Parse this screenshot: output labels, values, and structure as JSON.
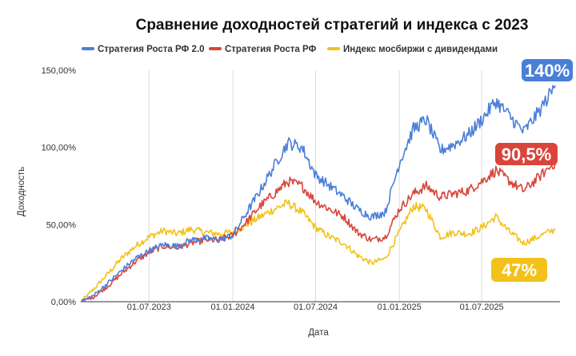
{
  "chart_data": {
    "type": "line",
    "title": "Сравнение доходностей стратегий и индекса с 2023",
    "xlabel": "Дата",
    "ylabel": "Доходность",
    "ylim": [
      0,
      150
    ],
    "xlim": [
      "2023-02-01",
      "2025-12-20"
    ],
    "x_ticks": [
      {
        "date": "2023-07-01",
        "label": "01.07.2023"
      },
      {
        "date": "2024-01-01",
        "label": "01.01.2024"
      },
      {
        "date": "2024-07-01",
        "label": "01.07.2024"
      },
      {
        "date": "2025-01-01",
        "label": "01.01.2025"
      },
      {
        "date": "2025-07-01",
        "label": "01.07.2025"
      }
    ],
    "y_ticks": [
      {
        "value": 0,
        "label": "0,00%"
      },
      {
        "value": 50,
        "label": "50,00%"
      },
      {
        "value": 100,
        "label": "100,00%"
      },
      {
        "value": 150,
        "label": "150,00%"
      }
    ],
    "grid": "vertical",
    "legend_position": "top",
    "series": [
      {
        "name": "Стратегия Роста РФ 2.0",
        "color": "#4a7fd8",
        "badge": "140%",
        "points": [
          [
            "2023-02-01",
            0
          ],
          [
            "2023-03-01",
            4
          ],
          [
            "2023-04-01",
            12
          ],
          [
            "2023-05-01",
            20
          ],
          [
            "2023-06-01",
            28
          ],
          [
            "2023-07-01",
            33
          ],
          [
            "2023-08-01",
            37
          ],
          [
            "2023-09-01",
            36
          ],
          [
            "2023-10-01",
            40
          ],
          [
            "2023-11-01",
            41
          ],
          [
            "2023-12-01",
            40
          ],
          [
            "2024-01-01",
            43
          ],
          [
            "2024-02-01",
            58
          ],
          [
            "2024-03-01",
            72
          ],
          [
            "2024-04-01",
            88
          ],
          [
            "2024-05-01",
            103
          ],
          [
            "2024-06-01",
            100
          ],
          [
            "2024-07-01",
            82
          ],
          [
            "2024-08-01",
            75
          ],
          [
            "2024-09-01",
            68
          ],
          [
            "2024-10-01",
            60
          ],
          [
            "2024-11-01",
            55
          ],
          [
            "2024-12-01",
            58
          ],
          [
            "2025-01-01",
            90
          ],
          [
            "2025-02-01",
            112
          ],
          [
            "2025-03-01",
            118
          ],
          [
            "2025-04-01",
            98
          ],
          [
            "2025-05-01",
            102
          ],
          [
            "2025-06-01",
            108
          ],
          [
            "2025-07-01",
            118
          ],
          [
            "2025-08-01",
            130
          ],
          [
            "2025-09-01",
            120
          ],
          [
            "2025-10-01",
            110
          ],
          [
            "2025-11-01",
            122
          ],
          [
            "2025-12-10",
            140
          ]
        ]
      },
      {
        "name": "Стратегия Роста РФ",
        "color": "#d9453b",
        "badge": "90,5%",
        "points": [
          [
            "2023-02-01",
            0
          ],
          [
            "2023-03-01",
            3
          ],
          [
            "2023-04-01",
            10
          ],
          [
            "2023-05-01",
            18
          ],
          [
            "2023-06-01",
            26
          ],
          [
            "2023-07-01",
            32
          ],
          [
            "2023-08-01",
            36
          ],
          [
            "2023-09-01",
            35
          ],
          [
            "2023-10-01",
            38
          ],
          [
            "2023-11-01",
            40
          ],
          [
            "2023-12-01",
            40
          ],
          [
            "2024-01-01",
            43
          ],
          [
            "2024-02-01",
            52
          ],
          [
            "2024-03-01",
            62
          ],
          [
            "2024-04-01",
            70
          ],
          [
            "2024-05-01",
            78
          ],
          [
            "2024-06-01",
            75
          ],
          [
            "2024-07-01",
            65
          ],
          [
            "2024-08-01",
            60
          ],
          [
            "2024-09-01",
            55
          ],
          [
            "2024-10-01",
            45
          ],
          [
            "2024-11-01",
            40
          ],
          [
            "2024-12-01",
            42
          ],
          [
            "2025-01-01",
            60
          ],
          [
            "2025-02-01",
            70
          ],
          [
            "2025-03-01",
            75
          ],
          [
            "2025-04-01",
            68
          ],
          [
            "2025-05-01",
            70
          ],
          [
            "2025-06-01",
            72
          ],
          [
            "2025-07-01",
            78
          ],
          [
            "2025-08-01",
            85
          ],
          [
            "2025-09-01",
            78
          ],
          [
            "2025-10-01",
            72
          ],
          [
            "2025-11-01",
            80
          ],
          [
            "2025-12-10",
            90.5
          ]
        ]
      },
      {
        "name": "Индекс мосбиржи с дивидендами",
        "color": "#f2c21a",
        "badge": "47%",
        "points": [
          [
            "2023-02-01",
            0
          ],
          [
            "2023-03-01",
            8
          ],
          [
            "2023-04-01",
            18
          ],
          [
            "2023-05-01",
            28
          ],
          [
            "2023-06-01",
            36
          ],
          [
            "2023-07-01",
            42
          ],
          [
            "2023-08-01",
            46
          ],
          [
            "2023-09-01",
            44
          ],
          [
            "2023-10-01",
            47
          ],
          [
            "2023-11-01",
            45
          ],
          [
            "2023-12-01",
            44
          ],
          [
            "2024-01-01",
            45
          ],
          [
            "2024-02-01",
            50
          ],
          [
            "2024-03-01",
            55
          ],
          [
            "2024-04-01",
            60
          ],
          [
            "2024-05-01",
            64
          ],
          [
            "2024-06-01",
            58
          ],
          [
            "2024-07-01",
            48
          ],
          [
            "2024-08-01",
            42
          ],
          [
            "2024-09-01",
            38
          ],
          [
            "2024-10-01",
            30
          ],
          [
            "2024-11-01",
            25
          ],
          [
            "2024-12-01",
            28
          ],
          [
            "2025-01-01",
            45
          ],
          [
            "2025-02-01",
            62
          ],
          [
            "2025-03-01",
            60
          ],
          [
            "2025-04-01",
            42
          ],
          [
            "2025-05-01",
            45
          ],
          [
            "2025-06-01",
            44
          ],
          [
            "2025-07-01",
            48
          ],
          [
            "2025-08-01",
            55
          ],
          [
            "2025-09-01",
            45
          ],
          [
            "2025-10-01",
            38
          ],
          [
            "2025-11-01",
            42
          ],
          [
            "2025-12-10",
            47
          ]
        ]
      }
    ]
  }
}
